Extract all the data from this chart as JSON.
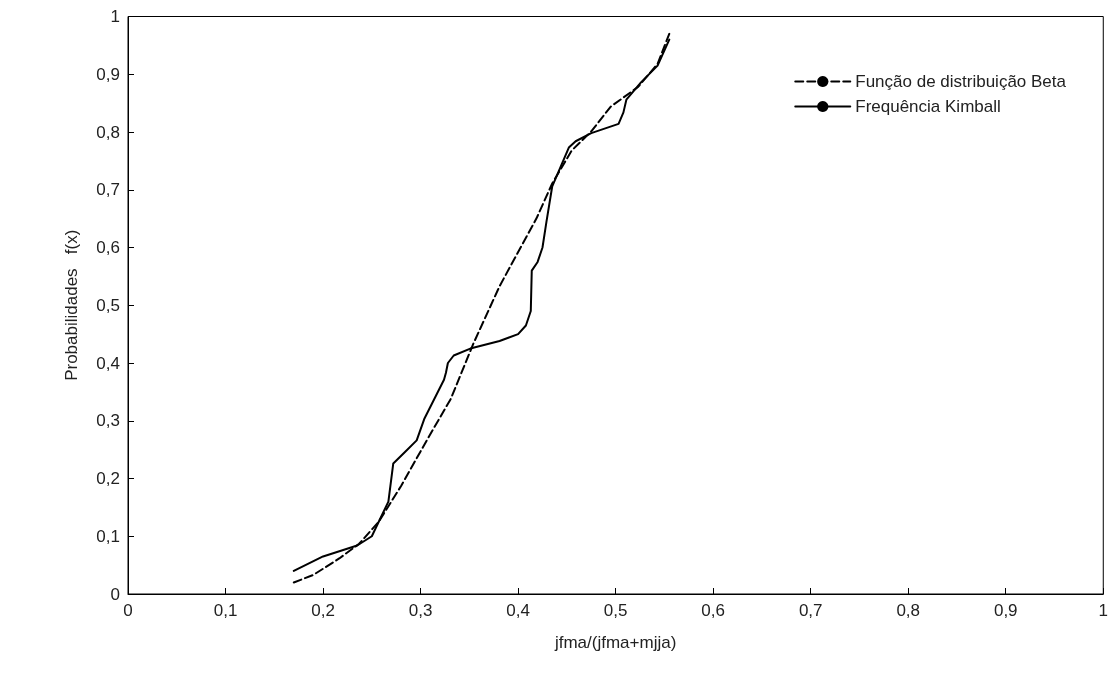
{
  "chart_data": {
    "type": "line",
    "xlabel": "jfma/(jfma+mjja)",
    "ylabel": "Probabilidades   f(x)",
    "xlim": [
      0,
      1
    ],
    "ylim": [
      0,
      1
    ],
    "xticks": [
      0,
      {
        "value": 0.1,
        "label": "0,1"
      },
      {
        "value": 0.2,
        "label": "0,2"
      },
      {
        "value": 0.3,
        "label": "0,3"
      },
      {
        "value": 0.4,
        "label": "0,4"
      },
      {
        "value": 0.5,
        "label": "0,5"
      },
      {
        "value": 0.6,
        "label": "0,6"
      },
      {
        "value": 0.7,
        "label": "0,7"
      },
      {
        "value": 0.8,
        "label": "0,8"
      },
      {
        "value": 0.9,
        "label": "0,9"
      },
      1
    ],
    "yticks": [
      0,
      {
        "value": 0.1,
        "label": "0,1"
      },
      {
        "value": 0.2,
        "label": "0,2"
      },
      {
        "value": 0.3,
        "label": "0,3"
      },
      {
        "value": 0.4,
        "label": "0,4"
      },
      {
        "value": 0.5,
        "label": "0,5"
      },
      {
        "value": 0.6,
        "label": "0,6"
      },
      {
        "value": 0.7,
        "label": "0,7"
      },
      {
        "value": 0.8,
        "label": "0,8"
      },
      {
        "value": 0.9,
        "label": "0,9"
      },
      1
    ],
    "grid": false,
    "legend": "top right",
    "marker": "none",
    "series": [
      {
        "name": "Função de distribuição Beta",
        "color": "#000000",
        "line_style": "dashed",
        "x": [
          0.17,
          0.19,
          0.217,
          0.237,
          0.257,
          0.28,
          0.308,
          0.331,
          0.354,
          0.381,
          0.419,
          0.435,
          0.455,
          0.475,
          0.495,
          0.523,
          0.543,
          0.555
        ],
        "values": [
          0.02,
          0.033,
          0.062,
          0.087,
          0.125,
          0.187,
          0.271,
          0.338,
          0.433,
          0.533,
          0.651,
          0.711,
          0.768,
          0.801,
          0.844,
          0.878,
          0.918,
          0.97
        ]
      },
      {
        "name": "Frequência Kimball",
        "color": "#000000",
        "line_style": "solid",
        "x": [
          0.17,
          0.2,
          0.235,
          0.25,
          0.267,
          0.272,
          0.284,
          0.296,
          0.304,
          0.324,
          0.326,
          0.328,
          0.334,
          0.351,
          0.381,
          0.4,
          0.408,
          0.413,
          0.414,
          0.42,
          0.425,
          0.429,
          0.435,
          0.452,
          0.459,
          0.475,
          0.503,
          0.508,
          0.511,
          0.526,
          0.543,
          0.555
        ],
        "values": [
          0.04,
          0.065,
          0.084,
          0.1,
          0.16,
          0.226,
          0.246,
          0.266,
          0.304,
          0.371,
          0.383,
          0.4,
          0.413,
          0.425,
          0.438,
          0.45,
          0.465,
          0.49,
          0.56,
          0.575,
          0.6,
          0.644,
          0.706,
          0.773,
          0.784,
          0.798,
          0.814,
          0.834,
          0.856,
          0.886,
          0.915,
          0.96
        ]
      }
    ]
  }
}
